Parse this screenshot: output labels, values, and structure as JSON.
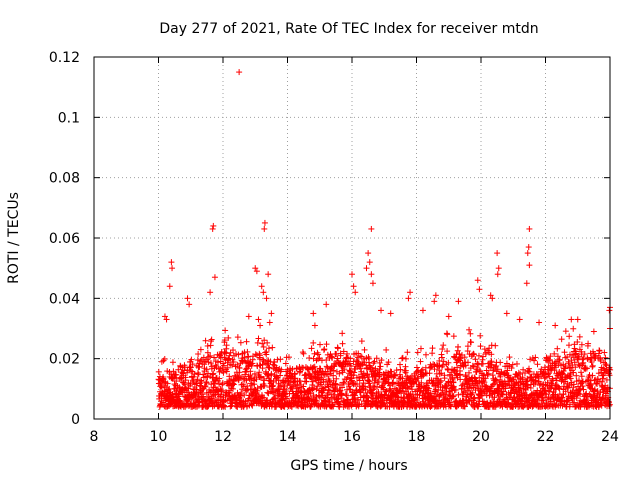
{
  "chart_data": {
    "type": "scatter",
    "title": "Day 277 of 2021, Rate Of TEC Index for receiver mtdn",
    "xlabel": "GPS time / hours",
    "ylabel": "ROTI / TECUs",
    "xlim": [
      8,
      24
    ],
    "ylim": [
      0,
      0.12
    ],
    "xticks": [
      8,
      10,
      12,
      14,
      16,
      18,
      20,
      22,
      24
    ],
    "yticks": [
      0,
      0.02,
      0.04,
      0.06,
      0.08,
      0.1,
      0.12
    ],
    "xtick_labels": [
      "8",
      "10",
      "12",
      "14",
      "16",
      "18",
      "20",
      "22",
      "24"
    ],
    "ytick_labels": [
      "0",
      "0.02",
      "0.04",
      "0.06",
      "0.08",
      "0.1",
      "0.12"
    ],
    "grid": true,
    "marker": "+",
    "color": "#ff0000",
    "data_range_x": [
      10.0,
      24.0
    ],
    "series": [
      {
        "name": "ROTI",
        "points": [
          [
            12.5,
            0.115
          ],
          [
            11.7,
            0.064
          ],
          [
            11.68,
            0.063
          ],
          [
            13.3,
            0.065
          ],
          [
            13.28,
            0.063
          ],
          [
            16.6,
            0.063
          ],
          [
            21.5,
            0.063
          ],
          [
            21.48,
            0.057
          ],
          [
            21.45,
            0.055
          ],
          [
            21.5,
            0.051
          ],
          [
            21.42,
            0.045
          ],
          [
            20.5,
            0.055
          ],
          [
            20.55,
            0.05
          ],
          [
            20.52,
            0.048
          ],
          [
            10.4,
            0.052
          ],
          [
            10.42,
            0.05
          ],
          [
            10.35,
            0.044
          ],
          [
            11.75,
            0.047
          ],
          [
            11.6,
            0.042
          ],
          [
            13.0,
            0.05
          ],
          [
            13.05,
            0.049
          ],
          [
            13.4,
            0.048
          ],
          [
            13.2,
            0.044
          ],
          [
            13.25,
            0.042
          ],
          [
            13.35,
            0.04
          ],
          [
            16.5,
            0.055
          ],
          [
            16.55,
            0.052
          ],
          [
            16.45,
            0.05
          ],
          [
            16.6,
            0.048
          ],
          [
            16.65,
            0.045
          ],
          [
            16.0,
            0.048
          ],
          [
            16.05,
            0.044
          ],
          [
            16.1,
            0.042
          ],
          [
            19.9,
            0.046
          ],
          [
            19.95,
            0.043
          ],
          [
            20.3,
            0.041
          ],
          [
            20.35,
            0.04
          ],
          [
            18.6,
            0.041
          ],
          [
            18.55,
            0.039
          ],
          [
            17.8,
            0.042
          ],
          [
            17.75,
            0.04
          ],
          [
            19.3,
            0.039
          ],
          [
            24.0,
            0.037
          ],
          [
            23.98,
            0.036
          ],
          [
            15.2,
            0.038
          ],
          [
            10.2,
            0.034
          ],
          [
            10.25,
            0.033
          ],
          [
            10.9,
            0.04
          ],
          [
            10.95,
            0.038
          ],
          [
            12.8,
            0.034
          ],
          [
            14.8,
            0.035
          ],
          [
            14.85,
            0.031
          ],
          [
            16.9,
            0.036
          ],
          [
            17.2,
            0.035
          ],
          [
            18.2,
            0.036
          ],
          [
            19.0,
            0.034
          ],
          [
            20.8,
            0.035
          ],
          [
            21.2,
            0.033
          ],
          [
            21.8,
            0.032
          ],
          [
            22.3,
            0.031
          ],
          [
            22.8,
            0.033
          ],
          [
            23.0,
            0.033
          ],
          [
            23.5,
            0.029
          ],
          [
            24.0,
            0.03
          ],
          [
            13.5,
            0.035
          ],
          [
            13.45,
            0.032
          ],
          [
            13.1,
            0.033
          ],
          [
            13.15,
            0.031
          ]
        ]
      }
    ]
  }
}
